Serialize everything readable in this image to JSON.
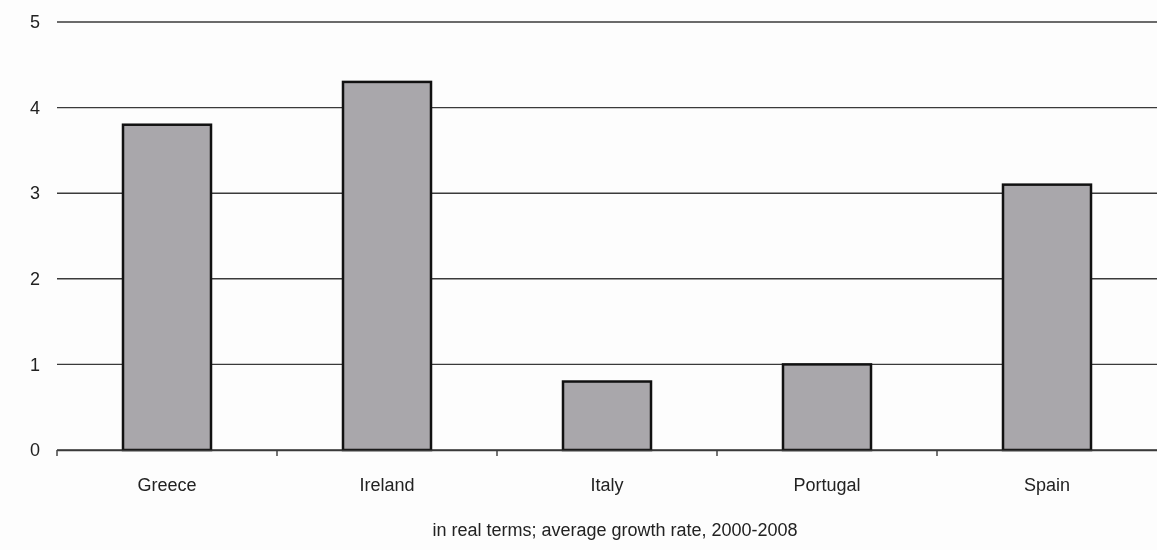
{
  "chart_data": {
    "type": "bar",
    "xlabel": "in real terms; average growth rate, 2000-2008",
    "categories": [
      "Greece",
      "Ireland",
      "Italy",
      "Portugal",
      "Spain"
    ],
    "values": [
      3.8,
      4.3,
      0.8,
      1.0,
      3.1
    ],
    "color": "#a9a7ab",
    "ylim": [
      0,
      5
    ],
    "yticks": [
      0,
      1,
      2,
      3,
      4,
      5
    ],
    "grid": "y"
  }
}
